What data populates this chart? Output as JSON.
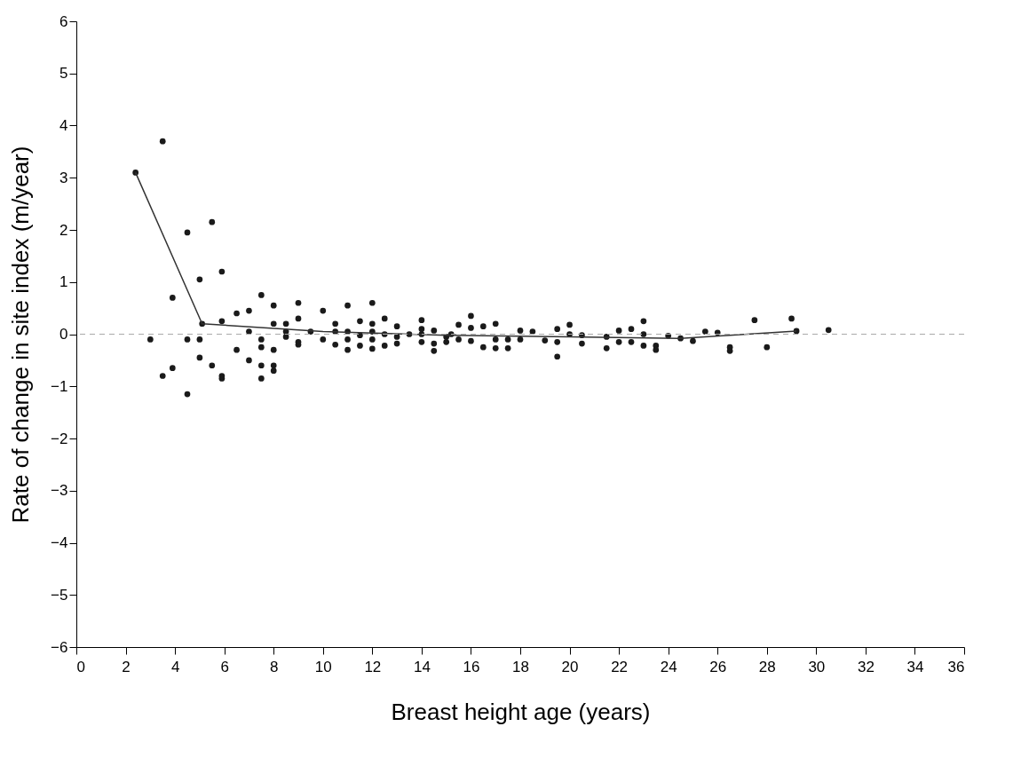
{
  "chart_data": {
    "type": "scatter",
    "xlabel": "Breast height age (years)",
    "ylabel": "Rate of change in site index (m/year)",
    "xlim": [
      0,
      36
    ],
    "xticks": [
      0,
      2,
      4,
      6,
      8,
      10,
      12,
      14,
      16,
      18,
      20,
      22,
      24,
      26,
      28,
      30,
      32,
      34,
      36
    ],
    "ylim": [
      -6,
      6
    ],
    "yticks": [
      {
        "value": -6,
        "label": "−6"
      },
      {
        "value": -5,
        "label": "−5"
      },
      {
        "value": -4,
        "label": "−4"
      },
      {
        "value": -3,
        "label": "−3"
      },
      {
        "value": -2,
        "label": "−2"
      },
      {
        "value": -1,
        "label": "−1"
      },
      0,
      1,
      2,
      3,
      4,
      5,
      6
    ],
    "grid": false,
    "ref_lines": [
      {
        "axis": "y",
        "value": 0,
        "color": "#aaaaaa",
        "line_style": "dashed"
      }
    ],
    "series": [
      {
        "color": "#1a1a1a",
        "marker": "circle",
        "x": [
          2.4,
          3.5,
          3.0,
          3.5,
          3.9,
          3.9,
          4.5,
          4.5,
          4.5,
          5.0,
          5.0,
          5.0,
          5.5,
          5.5,
          5.9,
          5.9,
          5.9,
          5.9,
          6.5,
          6.5,
          7.0,
          7.0,
          7.0,
          7.5,
          7.5,
          7.5,
          7.5,
          7.5,
          8.0,
          8.0,
          8.0,
          8.0,
          8.0,
          8.5,
          8.5,
          8.5,
          9.0,
          9.0,
          9.0,
          9.0,
          9.5,
          10.0,
          10.0,
          10.5,
          10.5,
          10.5,
          11.0,
          11.0,
          11.0,
          11.0,
          11.5,
          11.5,
          11.5,
          12.0,
          12.0,
          12.0,
          12.0,
          12.0,
          12.5,
          12.5,
          12.5,
          13.0,
          13.0,
          13.0,
          13.5,
          14.0,
          14.0,
          14.0,
          14.0,
          14.5,
          14.5,
          14.5,
          15.0,
          15.0,
          15.2,
          15.5,
          15.5,
          16.0,
          16.0,
          16.0,
          16.5,
          16.5,
          17.0,
          17.0,
          17.0,
          17.5,
          17.5,
          18.0,
          18.0,
          18.5,
          19.0,
          19.5,
          19.5,
          19.5,
          20.0,
          20.0,
          20.5,
          20.5,
          21.5,
          21.5,
          22.0,
          22.0,
          22.5,
          22.5,
          23.0,
          23.0,
          23.0,
          23.5,
          23.5,
          24.0,
          24.5,
          25.0,
          25.5,
          26.0,
          26.5,
          26.5,
          27.5,
          28.0,
          29.0,
          29.2,
          30.5,
          5.1
        ],
        "values": [
          3.1,
          3.7,
          -0.1,
          -0.8,
          0.7,
          -0.65,
          1.95,
          -0.1,
          -1.15,
          1.05,
          -0.1,
          -0.45,
          2.15,
          -0.6,
          1.2,
          0.25,
          -0.8,
          -0.85,
          0.4,
          -0.3,
          0.45,
          0.05,
          -0.5,
          0.75,
          -0.1,
          -0.25,
          -0.6,
          -0.85,
          0.55,
          0.2,
          -0.3,
          -0.6,
          -0.7,
          0.2,
          0.05,
          -0.05,
          0.6,
          0.3,
          -0.15,
          -0.2,
          0.05,
          0.45,
          -0.1,
          0.2,
          0.05,
          -0.2,
          0.55,
          0.05,
          -0.1,
          -0.3,
          0.25,
          -0.02,
          -0.22,
          0.6,
          0.2,
          0.05,
          -0.1,
          -0.28,
          0.3,
          0.0,
          -0.22,
          0.15,
          -0.05,
          -0.18,
          0.0,
          0.27,
          0.1,
          0.0,
          -0.15,
          0.07,
          -0.18,
          -0.32,
          -0.05,
          -0.15,
          0.0,
          0.18,
          -0.1,
          0.35,
          0.12,
          -0.13,
          0.15,
          -0.25,
          0.2,
          -0.1,
          -0.27,
          -0.1,
          -0.27,
          0.07,
          -0.1,
          0.05,
          -0.12,
          0.1,
          -0.15,
          -0.43,
          0.18,
          0.0,
          -0.02,
          -0.18,
          -0.05,
          -0.27,
          0.07,
          -0.15,
          0.1,
          -0.15,
          0.25,
          0.0,
          -0.22,
          -0.22,
          -0.3,
          -0.03,
          -0.08,
          -0.13,
          0.05,
          0.03,
          -0.25,
          -0.32,
          0.27,
          -0.25,
          0.3,
          0.06,
          0.08,
          0.2
        ]
      },
      {
        "type": "line",
        "color": "#333333",
        "line_style": "solid",
        "x": [
          2.4,
          5.1,
          10.0,
          15.0,
          20.0,
          24.5,
          29.2
        ],
        "values": [
          3.1,
          0.2,
          0.05,
          -0.02,
          -0.05,
          -0.08,
          0.06
        ]
      }
    ]
  }
}
